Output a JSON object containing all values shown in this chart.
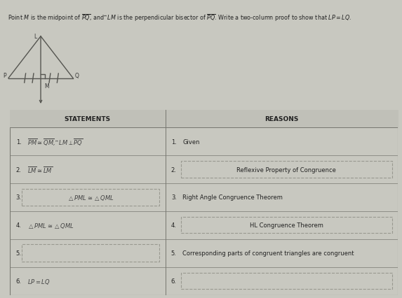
{
  "bg_color": "#c8c8c0",
  "table_bg": "#d8d8d0",
  "header_bg": "#c0c0b8",
  "line_color": "#888880",
  "text_color": "#222222",
  "italic_color": "#444444",
  "statements_header": "STATEMENTS",
  "reasons_header": "REASONS",
  "title_line": "Point M is the midpoint of $\\overline{PQ}$, and $\\overleftrightarrow{LM}$ is the perpendicular bisector of $\\overline{PQ}$. Write a two-column proof to show that $LP=LQ$.",
  "col_split": 0.4,
  "rows": [
    {
      "num": "1.",
      "stmt_text": "$\\overline{PM}\\cong\\overline{QM}$, $\\overleftrightarrow{LM}\\perp\\overline{PQ}$",
      "reason_num": "1.",
      "reason_text": "Given",
      "stmt_box": false,
      "reason_box": false
    },
    {
      "num": "2.",
      "stmt_text": "$\\overline{LM}\\cong\\overline{LM}$",
      "reason_num": "2.",
      "reason_text": "Reflexive Property of Congruence",
      "stmt_box": false,
      "reason_box": true
    },
    {
      "num": "3.",
      "stmt_text": "$\\triangle PML\\cong\\triangle QML$",
      "reason_num": "3.",
      "reason_text": "Right Angle Congruence Theorem",
      "stmt_box": true,
      "reason_box": false
    },
    {
      "num": "4.",
      "stmt_text": "$\\triangle PML\\cong\\triangle QML$",
      "reason_num": "4.",
      "reason_text": "HL Congruence Theorem",
      "stmt_box": false,
      "reason_box": true
    },
    {
      "num": "5.",
      "stmt_text": "",
      "reason_num": "5.",
      "reason_text": "Corresponding parts of congruent triangles are congruent",
      "stmt_box": true,
      "reason_box": false
    },
    {
      "num": "6.",
      "stmt_text": "$LP=LQ$",
      "reason_num": "6.",
      "reason_text": "",
      "stmt_box": false,
      "reason_box": true
    }
  ]
}
